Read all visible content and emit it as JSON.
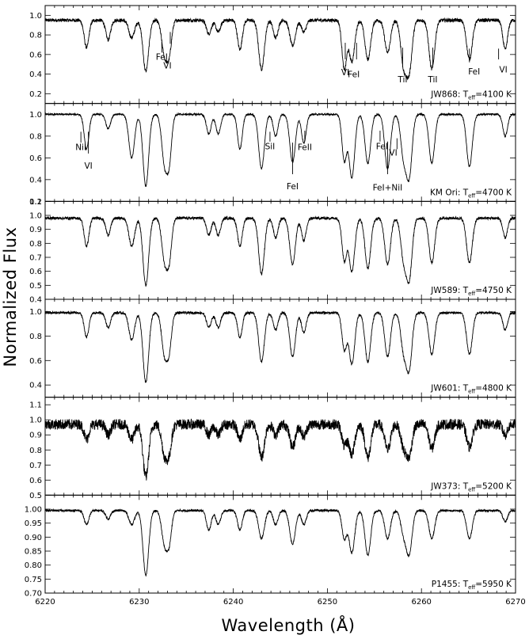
{
  "chart_data": {
    "type": "line",
    "xlabel": "Wavelength (Å)",
    "ylabel": "Normalized Flux",
    "xlim": [
      6220,
      6270
    ],
    "x_ticks": [
      6220,
      6230,
      6240,
      6250,
      6260,
      6270
    ],
    "lines": [
      {
        "center": 6224.4,
        "width": 0.25
      },
      {
        "center": 6226.7,
        "width": 0.25
      },
      {
        "center": 6229.2,
        "width": 0.3
      },
      {
        "center": 6230.7,
        "width": 0.3
      },
      {
        "center": 6232.7,
        "width": 0.3
      },
      {
        "center": 6233.2,
        "width": 0.25
      },
      {
        "center": 6237.4,
        "width": 0.25
      },
      {
        "center": 6238.4,
        "width": 0.25
      },
      {
        "center": 6240.7,
        "width": 0.25
      },
      {
        "center": 6243.0,
        "width": 0.3
      },
      {
        "center": 6244.5,
        "width": 0.25
      },
      {
        "center": 6246.3,
        "width": 0.3
      },
      {
        "center": 6247.5,
        "width": 0.25
      },
      {
        "center": 6251.8,
        "width": 0.25
      },
      {
        "center": 6252.6,
        "width": 0.3
      },
      {
        "center": 6254.3,
        "width": 0.3
      },
      {
        "center": 6256.4,
        "width": 0.3
      },
      {
        "center": 6258.1,
        "width": 0.3
      },
      {
        "center": 6258.7,
        "width": 0.3
      },
      {
        "center": 6261.1,
        "width": 0.3
      },
      {
        "center": 6265.1,
        "width": 0.3
      },
      {
        "center": 6268.9,
        "width": 0.25
      }
    ],
    "panels": [
      {
        "star": "JW868",
        "teff": "4100",
        "ylim": [
          0.1,
          1.1
        ],
        "yticks": [
          {
            "v": 0.2,
            "t": "0.2"
          },
          {
            "v": 0.4,
            "t": "0.4"
          },
          {
            "v": 0.6,
            "t": "0.6"
          },
          {
            "v": 0.8,
            "t": "0.8"
          },
          {
            "v": 1.0,
            "t": "1.0"
          }
        ],
        "depths": [
          0.28,
          0.2,
          0.18,
          0.52,
          0.35,
          0.3,
          0.14,
          0.12,
          0.3,
          0.5,
          0.18,
          0.26,
          0.12,
          0.5,
          0.42,
          0.4,
          0.33,
          0.45,
          0.5,
          0.5,
          0.4,
          0.3
        ],
        "continuum": 0.95,
        "noise": 0.018,
        "annotations": [
          {
            "text": "FeI",
            "x": 6232.4,
            "yt": 0.73,
            "yb": 0.62,
            "lx": 6232.4,
            "ly": 0.58
          },
          {
            "text": "VI",
            "x": 6233.0,
            "yt": 0.83,
            "yb": 0.71,
            "lx": 6233.3,
            "ly": 0.49
          },
          {
            "text": "VI",
            "x": 6251.9,
            "yt": 0.72,
            "yb": 0.55,
            "lx": 6251.9,
            "ly": 0.42
          },
          {
            "text": "FeI",
            "x": 6252.8,
            "yt": 0.72,
            "yb": 0.55,
            "lx": 6253.1,
            "ly": 0.4
          },
          {
            "text": "TiI",
            "x": 6258.0,
            "yt": 0.67,
            "yb": 0.47,
            "lx": 6258.0,
            "ly": 0.35
          },
          {
            "text": "TiI",
            "x": 6261.2,
            "yt": 0.67,
            "yb": 0.47,
            "lx": 6261.2,
            "ly": 0.35
          },
          {
            "text": "FeI",
            "x": 6265.6,
            "yt": 0.66,
            "yb": 0.52,
            "lx": 6265.1,
            "ly": 0.43
          },
          {
            "text": "VI",
            "x": 6268.7,
            "yt": 0.66,
            "yb": 0.55,
            "lx": 6268.2,
            "ly": 0.45
          }
        ]
      },
      {
        "star": "KM Ori",
        "teff": "4700",
        "ylim": [
          0.2,
          1.1
        ],
        "yticks": [
          {
            "v": 0.2,
            "t": "0.2"
          },
          {
            "v": 0.4,
            "t": "0.4"
          },
          {
            "v": 0.6,
            "t": "0.6"
          },
          {
            "v": 0.8,
            "t": "0.8"
          },
          {
            "v": 1.0,
            "t": "1.0"
          }
        ],
        "depths": [
          0.32,
          0.13,
          0.4,
          0.66,
          0.45,
          0.38,
          0.18,
          0.18,
          0.32,
          0.5,
          0.2,
          0.44,
          0.26,
          0.42,
          0.58,
          0.45,
          0.5,
          0.38,
          0.55,
          0.45,
          0.48,
          0.2
        ],
        "continuum": 1.0,
        "noise": 0.008,
        "annotations": [
          {
            "text": "NiI",
            "x": 6223.8,
            "yt": 0.84,
            "yb": 0.74,
            "lx": 6223.8,
            "ly": 0.7
          },
          {
            "text": "VI",
            "x": 6224.6,
            "yt": 0.84,
            "yb": 0.64,
            "lx": 6224.6,
            "ly": 0.53
          },
          {
            "text": "SiI",
            "x": 6243.9,
            "yt": 0.84,
            "yb": 0.75,
            "lx": 6243.9,
            "ly": 0.71
          },
          {
            "text": "FeI",
            "x": 6246.3,
            "yt": 0.74,
            "yb": 0.45,
            "lx": 6246.3,
            "ly": 0.34
          },
          {
            "text": "FeII",
            "x": 6247.6,
            "yt": 0.85,
            "yb": 0.75,
            "lx": 6247.6,
            "ly": 0.7
          },
          {
            "text": "FeI",
            "x": 6255.8,
            "yt": 0.85,
            "yb": 0.75,
            "lx": 6255.6,
            "ly": 0.71
          },
          {
            "text": "VI",
            "x": 6257.0,
            "yt": 0.78,
            "yb": 0.68,
            "lx": 6257.4,
            "ly": 0.65
          },
          {
            "text": "FeI+NiI",
            "x": 6256.4,
            "yt": 0.75,
            "yb": 0.45,
            "lx": 6256.4,
            "ly": 0.33
          }
        ]
      },
      {
        "star": "JW589",
        "teff": "4750",
        "ylim": [
          0.4,
          1.1
        ],
        "yticks": [
          {
            "v": 0.4,
            "t": "0.4"
          },
          {
            "v": 0.5,
            "t": "0.5"
          },
          {
            "v": 0.6,
            "t": "0.6"
          },
          {
            "v": 0.7,
            "t": "0.7"
          },
          {
            "v": 0.8,
            "t": "0.8"
          },
          {
            "v": 0.9,
            "t": "0.9"
          },
          {
            "v": 1.0,
            "t": "1.0"
          },
          {
            "v": 1.1,
            "t": "1.1"
          }
        ],
        "depths": [
          0.2,
          0.12,
          0.2,
          0.48,
          0.3,
          0.26,
          0.12,
          0.12,
          0.2,
          0.4,
          0.14,
          0.33,
          0.16,
          0.3,
          0.38,
          0.36,
          0.33,
          0.28,
          0.42,
          0.32,
          0.32,
          0.14
        ],
        "continuum": 0.98,
        "noise": 0.01,
        "annotations": []
      },
      {
        "star": "JW601",
        "teff": "4800",
        "ylim": [
          0.3,
          1.1
        ],
        "yticks": [
          {
            "v": 0.4,
            "t": "0.4"
          },
          {
            "v": 0.6,
            "t": "0.6"
          },
          {
            "v": 0.8,
            "t": "0.8"
          },
          {
            "v": 1.0,
            "t": "1.0"
          }
        ],
        "depths": [
          0.2,
          0.12,
          0.22,
          0.57,
          0.34,
          0.26,
          0.12,
          0.12,
          0.2,
          0.4,
          0.14,
          0.36,
          0.16,
          0.3,
          0.42,
          0.4,
          0.36,
          0.3,
          0.44,
          0.34,
          0.34,
          0.14
        ],
        "continuum": 0.99,
        "noise": 0.01,
        "annotations": []
      },
      {
        "star": "JW373",
        "teff": "5200",
        "ylim": [
          0.5,
          1.15
        ],
        "yticks": [
          {
            "v": 0.5,
            "t": "0.5"
          },
          {
            "v": 0.6,
            "t": "0.6"
          },
          {
            "v": 0.7,
            "t": "0.7"
          },
          {
            "v": 0.8,
            "t": "0.8"
          },
          {
            "v": 0.9,
            "t": "0.9"
          },
          {
            "v": 1.0,
            "t": "1.0"
          },
          {
            "v": 1.1,
            "t": "1.1"
          }
        ],
        "depths": [
          0.1,
          0.07,
          0.1,
          0.35,
          0.2,
          0.16,
          0.07,
          0.07,
          0.1,
          0.22,
          0.07,
          0.15,
          0.08,
          0.14,
          0.2,
          0.22,
          0.17,
          0.14,
          0.2,
          0.16,
          0.15,
          0.07
        ],
        "continuum": 0.97,
        "noise": 0.035,
        "annotations": []
      },
      {
        "star": "P1455",
        "teff": "5950",
        "ylim": [
          0.7,
          1.05
        ],
        "yticks": [
          {
            "v": 0.7,
            "t": "0.70"
          },
          {
            "v": 0.75,
            "t": "0.75"
          },
          {
            "v": 0.8,
            "t": "0.80"
          },
          {
            "v": 0.85,
            "t": "0.85"
          },
          {
            "v": 0.9,
            "t": "0.90"
          },
          {
            "v": 0.95,
            "t": "0.95"
          },
          {
            "v": 1.0,
            "t": "1.00"
          }
        ],
        "depths": [
          0.05,
          0.03,
          0.05,
          0.23,
          0.12,
          0.1,
          0.07,
          0.05,
          0.07,
          0.1,
          0.05,
          0.12,
          0.05,
          0.1,
          0.15,
          0.16,
          0.1,
          0.08,
          0.15,
          0.1,
          0.1,
          0.04
        ],
        "continuum": 0.995,
        "noise": 0.004,
        "annotations": []
      }
    ]
  }
}
